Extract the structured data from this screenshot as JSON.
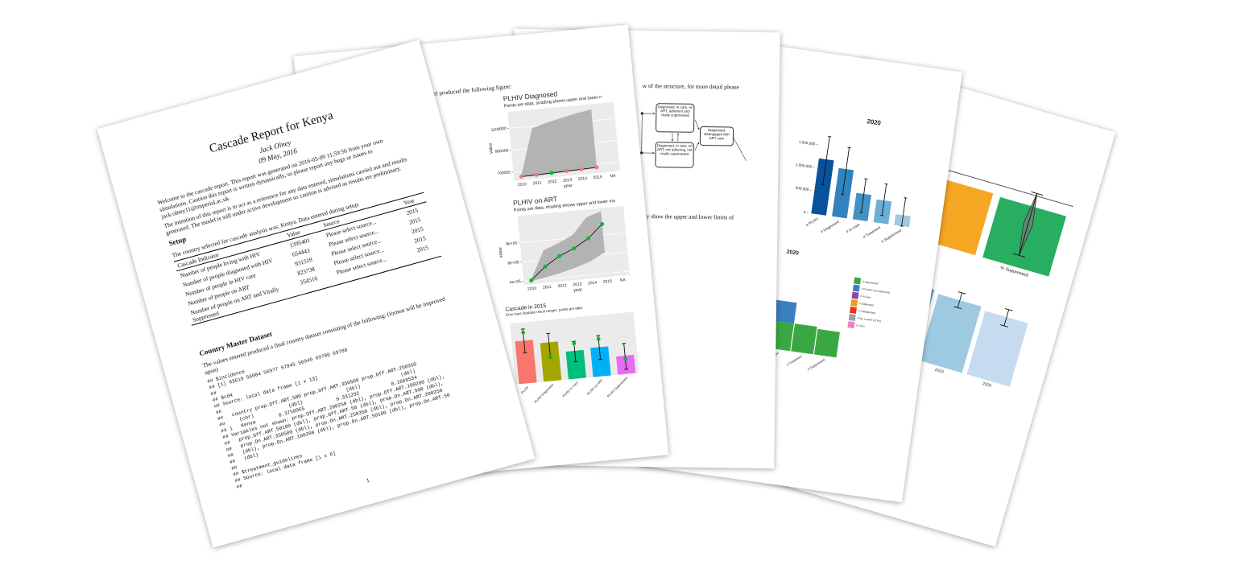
{
  "report_page": {
    "title": "Cascade Report for Kenya",
    "author": "Jack Olney",
    "date": "09 May, 2016",
    "intro": [
      "Welcome to the cascade report. This report was generated on 2016-05-09 11:59:56 from your own simulations. Caution this report is written dynamically, so please report any bugs or issues to jack.olney11@imperial.ac.uk.",
      "The intention of this report is to act as a reference for any data entered, simulations carried out and results generated. The model is still under active development so caution is advised as results are preliminary."
    ],
    "setup": {
      "heading": "Setup",
      "text": "The country selected for cascade analysis was: Kenya. Data entered during setup:",
      "table": {
        "header": [
          "Cascade Indicator",
          "Value",
          "Source",
          "Year"
        ],
        "rows": [
          [
            "Number of people living with HIV",
            "1395401",
            "Please select source...",
            "2015"
          ],
          [
            "Number of people diagnosed with HIV",
            "654443",
            "Please select source...",
            "2015"
          ],
          [
            "Number of people in HIV care",
            "931518",
            "Please select source...",
            "2015"
          ],
          [
            "Number of people on ART",
            "823738",
            "Please select source...",
            "2015"
          ],
          [
            "Number of people on ART and Virally Suppressed",
            "354516",
            "Please select source...",
            "2015"
          ]
        ]
      }
    },
    "dataset": {
      "heading": "Country Master Dataset",
      "text": "The values entered produced a final country dataset consisting of the following: (format will be improved upon)",
      "code": [
        "## $incidence",
        "## [1] 63619 56004 56977 57945 56949 69780 69780",
        "##",
        "## $cd4",
        "## Source: local data frame [1 x 13]",
        "##",
        "##   country prop.Off.ART.500 prop.Off.ART.350500 prop.Off.ART.250350",
        "##     (chr)            (dbl)               (dbl)              (dbl)",
        "## 1   Kenya        0.3758965           0.331292           0.1668534",
        "## Variables not shown: prop.Off.ART.200250 (dbl), prop.Off.ART.100200 (dbl),",
        "##   prop.Off.ART.50100 (dbl), prop.Off.ART.50 (dbl), prop.On.ART.500 (dbl),",
        "##   prop.On.ART.350500 (dbl), prop.On.ART.250350 (dbl), prop.On.ART.200250",
        "##   (dbl), prop.On.ART.100200 (dbl), prop.On.ART.50100 (dbl), prop.On.ART.50",
        "##   (dbl)",
        "##",
        "## $treatment_guidelines",
        "## Source: local data frame [1 x 6]",
        "##"
      ]
    },
    "page_number": "1"
  },
  "figures_page": {
    "intro": "e model produced the following figure:",
    "charts": [
      {
        "type": "line",
        "title": "PLHIV Diagnosed",
        "subtitle": "Points are data, shading shows upper and lower n",
        "xlabel": "year",
        "ylabel": "value",
        "categories": [
          "2010",
          "2011",
          "2012",
          "2013",
          "2014",
          "2015",
          "NA"
        ],
        "values": [
          652000,
          655000,
          660000,
          664000,
          668000,
          672000,
          null
        ],
        "point_colors": [
          "#f8766d",
          "#f8766d",
          "#00ba38",
          "#f8766d",
          "#f8766d",
          "#f8766d",
          null
        ],
        "band_low": [
          648000,
          648000,
          652000,
          656000,
          660000,
          664000,
          null
        ],
        "band_high": [
          660000,
          1080000,
          1120000,
          1150000,
          1180000,
          1200000,
          null
        ],
        "band_color": "#b3b3b3",
        "line_color": "#000000",
        "panel": "#ebebeb",
        "grid": true,
        "ylim": [
          620000,
          1250000
        ],
        "yticks": [
          700000,
          900000,
          1100000
        ]
      },
      {
        "type": "line",
        "title": "PLHIV on ART",
        "subtitle": "Points are data, shading shows upper and lower mo",
        "xlabel": "year",
        "ylabel": "value",
        "categories": [
          "2010",
          "2011",
          "2012",
          "2013",
          "2014",
          "2015",
          "NA"
        ],
        "values": [
          400000,
          530000,
          625000,
          690000,
          780000,
          915000,
          null
        ],
        "point_colors": [
          "#00ba38",
          "#00ba38",
          "#00ba38",
          "#00ba38",
          "#00ba38",
          "#00ba38",
          null
        ],
        "band_low": [
          390000,
          420000,
          450000,
          490000,
          540000,
          620000,
          null
        ],
        "band_high": [
          410000,
          700000,
          760000,
          830000,
          1000000,
          1050000,
          null
        ],
        "band_color": "#b3b3b3",
        "line_color": "#000000",
        "panel": "#ebebeb",
        "grid": true,
        "ylim": [
          360000,
          1080000
        ],
        "yticks": [
          {
            "value": 400000,
            "label": "4e+05"
          },
          {
            "value": 600000,
            "label": "6e+05"
          },
          {
            "value": 800000,
            "label": "8e+05"
          }
        ]
      },
      {
        "type": "bar",
        "title": "Cascade in 2015",
        "subtitle": "Error bars illustrate result ranges, points are data",
        "categories": [
          "PLHIV",
          "PLHIV Diagnosed",
          "PLHIV in Care",
          "PLHIV on ART",
          "PLHIV Suppressed"
        ],
        "values": [
          1260000,
          1140000,
          820000,
          860000,
          540000
        ],
        "colors": [
          "#f8766d",
          "#a3a500",
          "#00bf7d",
          "#00b0f6",
          "#e76bf3"
        ],
        "low": [
          900000,
          700000,
          500000,
          500000,
          140000
        ],
        "high": [
          1600000,
          1400000,
          1100000,
          1200000,
          900000
        ],
        "points": [
          1500000,
          700000,
          1040000,
          1100000,
          440000
        ],
        "point_color": "#00ba38",
        "panel": "#ebebeb",
        "ylim": [
          0,
          1800000
        ]
      }
    ]
  },
  "structure_page": {
    "intro": "w of the structure, for more detail please",
    "nodes": [
      {
        "label": "Diagnosed, in care, on ART, adherent and virally suppressed"
      },
      {
        "label": "Diagnosed, disengaged with ART care"
      },
      {
        "label": "Diagnosed, in care, on ART, not adhering, not virally suppressed"
      }
    ],
    "note": "ly show the upper and lower limits of"
  },
  "results_page": {
    "charts": [
      {
        "type": "bar",
        "title": "2020",
        "categories": [
          "# PLHIV",
          "# Diagnosed",
          "# In Care",
          "# Treatment",
          "# Suppressed"
        ],
        "values": [
          1210000,
          1060000,
          580000,
          500000,
          240000
        ],
        "colors": [
          "#08519c",
          "#3182bd",
          "#4292c6",
          "#6baed6",
          "#9ecae1"
        ],
        "low": [
          650000,
          500000,
          170000,
          170000,
          0
        ],
        "high": [
          1710000,
          1530000,
          910000,
          860000,
          620000
        ],
        "ylim": [
          0,
          1750000
        ],
        "yticks": [
          0,
          {
            "value": 500000,
            "label": "500,000"
          },
          {
            "value": 1000000,
            "label": "1,000,000"
          },
          {
            "value": 1500000,
            "label": "1,500,000"
          }
        ]
      },
      {
        "type": "stacked_bar",
        "title": "2020",
        "legend": "right",
        "categories": [
          "# PLHIV",
          "# Diagnosed",
          "# In Care",
          "# Treatment",
          "# Suppressed"
        ],
        "series": [
          {
            "name": "# Suppressed",
            "color": "#3aa842",
            "values": [
              640000,
              640000,
              640000,
              640000,
              590000
            ]
          },
          {
            "name": "# On ART (non-adherent)",
            "color": "#3c7fc0",
            "values": [
              480000,
              480000,
              480000,
              0,
              0
            ]
          },
          {
            "name": "# In Care",
            "color": "#8e44ad",
            "values": [
              0,
              0,
              0,
              0,
              0
            ]
          },
          {
            "name": "# Diagnosed",
            "color": "#f39c12",
            "values": [
              0,
              0,
              0,
              0,
              0
            ]
          },
          {
            "name": "# Undiagnosed",
            "color": "#e8341c",
            "values": [
              0,
              0,
              0,
              0,
              0
            ]
          },
          {
            "name": "# Not on ART (LTFU)",
            "color": "#a0a0a0",
            "values": [
              240000,
              0,
              0,
              0,
              0
            ]
          },
          {
            "name": "# LTFU",
            "color": "#f27fc8",
            "values": [
              480000,
              0,
              0,
              0,
              0
            ]
          }
        ],
        "ylim": [
          0,
          2000000
        ]
      }
    ]
  },
  "summary_page": {
    "charts": [
      {
        "type": "bar",
        "categories": [
          null,
          "% Suppressed"
        ],
        "values": [
          80,
          78
        ],
        "colors": [
          "#f5a623",
          "#27ae60"
        ],
        "low": [
          null,
          15
        ],
        "high": [
          null,
          95
        ],
        "target": 92,
        "ylim": [
          0,
          100
        ]
      },
      {
        "type": "bar",
        "categories": [
          null,
          "2015",
          "2020"
        ],
        "values": [
          94,
          90,
          86
        ],
        "colors": [
          "#6baed6",
          "#9ecae1",
          "#c6dbef"
        ],
        "low": [
          null,
          80,
          74
        ],
        "high": [
          null,
          100,
          96
        ],
        "ylim": [
          0,
          110
        ]
      }
    ]
  }
}
